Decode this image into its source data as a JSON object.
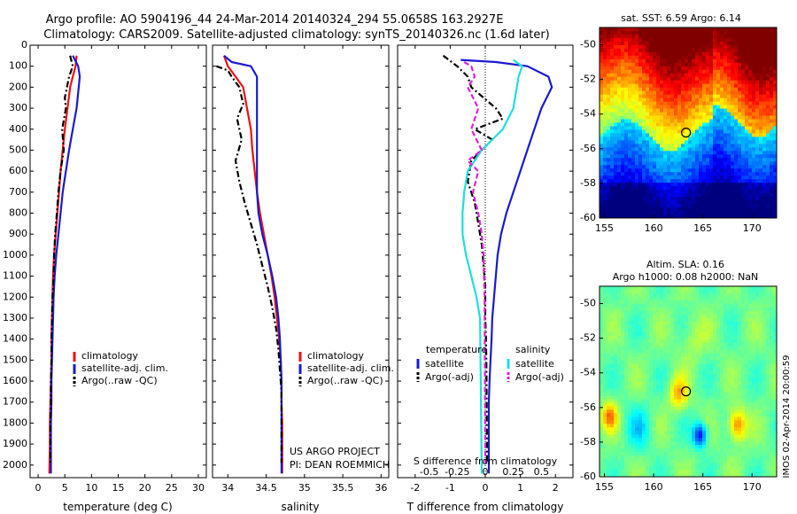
{
  "header": {
    "line1": "Argo profile: AO 5904196_44 24-Mar-2014 20140324_294 55.0658S 163.2927E",
    "line2": "Climatology: CARS2009. Satellite-adjusted climatology: synTS_20140326.nc (1.6d later)"
  },
  "colors": {
    "red": "#ee1111",
    "blue": "#1a1ad0",
    "black": "#000000",
    "cyan": "#22dddd",
    "magenta": "#dd22dd"
  },
  "chart_data": [
    {
      "type": "line",
      "xlabel": "temperature (deg C)",
      "xlim": [
        -1.5,
        31.5
      ],
      "xticks": [
        0,
        5,
        10,
        15,
        20,
        25,
        30
      ],
      "ylim": [
        0,
        2060
      ],
      "yticks": [
        0,
        100,
        200,
        300,
        400,
        500,
        600,
        700,
        800,
        900,
        1000,
        1100,
        1200,
        1300,
        1400,
        1500,
        1600,
        1700,
        1800,
        1900,
        2000
      ],
      "legend": {
        "placement": "lower-right",
        "entries": [
          "climatology",
          "satellite-adj. clim.",
          "Argo(..raw -QC)"
        ]
      },
      "series": [
        {
          "name": "climatology",
          "color": "red",
          "style": "solid",
          "x": [
            7.2,
            7.0,
            6.5,
            6.0,
            5.5,
            5.0,
            4.6,
            4.2,
            3.9,
            3.6,
            3.3,
            3.0,
            2.8,
            2.7,
            2.6,
            2.5,
            2.5,
            2.4,
            2.3,
            2.2,
            2.2,
            2.1
          ],
          "y": [
            50,
            100,
            150,
            200,
            300,
            400,
            500,
            600,
            700,
            800,
            900,
            1000,
            1100,
            1200,
            1300,
            1400,
            1500,
            1600,
            1700,
            1800,
            1900,
            2040
          ]
        },
        {
          "name": "satellite-adj. clim.",
          "color": "blue",
          "style": "solid",
          "x": [
            6.5,
            7.5,
            7.8,
            7.6,
            7.2,
            6.5,
            5.8,
            5.2,
            4.6,
            4.2,
            3.8,
            3.4,
            3.1,
            2.9,
            2.8,
            2.7,
            2.6,
            2.5,
            2.5,
            2.4,
            2.4,
            2.4
          ],
          "y": [
            50,
            100,
            150,
            200,
            300,
            400,
            500,
            600,
            700,
            800,
            900,
            1000,
            1100,
            1200,
            1300,
            1400,
            1500,
            1600,
            1700,
            1800,
            1900,
            2040
          ]
        },
        {
          "name": "Argo(..raw -QC)",
          "color": "black",
          "style": "dashdot",
          "x": [
            6.0,
            6.5,
            5.8,
            5.4,
            5.0,
            5.2,
            4.5,
            4.8,
            4.2,
            3.8,
            3.5,
            3.2,
            3.0,
            2.9,
            2.7,
            2.6,
            2.5,
            2.5,
            2.4,
            2.4,
            2.3,
            2.3
          ],
          "y": [
            50,
            100,
            150,
            200,
            250,
            300,
            400,
            500,
            600,
            700,
            800,
            900,
            1000,
            1100,
            1200,
            1300,
            1400,
            1500,
            1600,
            1700,
            1800,
            1990
          ]
        }
      ]
    },
    {
      "type": "line",
      "xlabel": "salinity",
      "xlim": [
        33.8,
        36.1
      ],
      "xticks": [
        34,
        34.5,
        35,
        35.5,
        36
      ],
      "ylim": [
        0,
        2060
      ],
      "legend": {
        "placement": "lower-right",
        "entries": [
          "climatology",
          "satellite-adj. clim.",
          "Argo(..raw -QC)"
        ]
      },
      "annotations": [
        "US ARGO PROJECT",
        "PI: DEAN ROEMMICH"
      ],
      "series": [
        {
          "name": "climatology",
          "color": "red",
          "style": "solid",
          "x": [
            33.95,
            34.0,
            34.1,
            34.2,
            34.25,
            34.3,
            34.32,
            34.35,
            34.38,
            34.42,
            34.47,
            34.52,
            34.57,
            34.61,
            34.64,
            34.67,
            34.69,
            34.7,
            34.7,
            34.71,
            34.71
          ],
          "y": [
            50,
            100,
            150,
            200,
            300,
            400,
            500,
            600,
            700,
            800,
            900,
            1000,
            1100,
            1200,
            1300,
            1400,
            1500,
            1600,
            1700,
            1800,
            2040
          ]
        },
        {
          "name": "satellite-adj. clim.",
          "color": "blue",
          "style": "solid",
          "x": [
            33.95,
            34.05,
            34.3,
            34.38,
            34.38,
            34.38,
            34.38,
            34.38,
            34.38,
            34.38,
            34.4,
            34.45,
            34.52,
            34.58,
            34.63,
            34.66,
            34.68,
            34.69,
            34.7,
            34.7,
            34.7
          ],
          "y": [
            50,
            80,
            100,
            150,
            200,
            300,
            400,
            500,
            600,
            700,
            800,
            900,
            1000,
            1100,
            1200,
            1300,
            1400,
            1500,
            1600,
            1700,
            2040
          ]
        },
        {
          "name": "Argo(..raw -QC)",
          "color": "black",
          "style": "dashdot",
          "x": [
            33.85,
            34.0,
            34.05,
            34.15,
            34.2,
            34.12,
            34.18,
            34.1,
            34.15,
            34.22,
            34.3,
            34.38,
            34.45,
            34.52,
            34.58,
            34.63,
            34.66,
            34.68,
            34.7,
            34.7,
            34.7
          ],
          "y": [
            100,
            120,
            150,
            200,
            280,
            350,
            450,
            550,
            650,
            750,
            850,
            950,
            1050,
            1150,
            1250,
            1350,
            1450,
            1550,
            1650,
            1800,
            1990
          ]
        }
      ]
    },
    {
      "type": "line",
      "xlabel": "T difference from climatology",
      "xlim": [
        -2.5,
        2.5
      ],
      "xticks": [
        -2,
        -1,
        0,
        1,
        2
      ],
      "top_axis_label": "S difference from climatology",
      "top_ticks": [
        "-0.5",
        "-0.25",
        "0",
        "0.25",
        "0.5"
      ],
      "ylim": [
        0,
        2060
      ],
      "legend": {
        "placement": "lower-center",
        "groups": [
          "temperature",
          "salinity"
        ],
        "entries": [
          "satellite",
          "Argo(-adj)",
          "satellite",
          "Argo(-adj)"
        ]
      },
      "series": [
        {
          "name": "temperature satellite",
          "color": "blue",
          "style": "solid",
          "x": [
            -0.7,
            0.3,
            1.2,
            1.8,
            1.9,
            1.6,
            1.4,
            1.2,
            1.0,
            0.8,
            0.6,
            0.45,
            0.35,
            0.3,
            0.25,
            0.2,
            0.18,
            0.15,
            0.12,
            0.1,
            0.1
          ],
          "y": [
            70,
            80,
            100,
            150,
            200,
            300,
            400,
            500,
            600,
            700,
            800,
            900,
            1000,
            1100,
            1200,
            1300,
            1400,
            1500,
            1600,
            1700,
            2040
          ]
        },
        {
          "name": "temperature Argo(-adj)",
          "color": "black",
          "style": "dashdot",
          "x": [
            -1.2,
            -0.8,
            -0.5,
            -0.4,
            0.3,
            0.5,
            -0.3,
            0.2,
            -0.4,
            -0.5,
            -0.3,
            -0.2,
            -0.1,
            -0.05,
            0.0,
            0.0,
            0.02,
            0.03,
            0.04,
            0.05
          ],
          "y": [
            50,
            100,
            150,
            200,
            300,
            350,
            400,
            450,
            550,
            650,
            750,
            850,
            950,
            1050,
            1150,
            1300,
            1400,
            1500,
            1700,
            1990
          ]
        },
        {
          "name": "salinity satellite",
          "color": "cyan",
          "style": "solid",
          "x": [
            0.8,
            1.05,
            0.95,
            0.8,
            0.5,
            -0.1,
            -0.5,
            -0.6,
            -0.65,
            -0.65,
            -0.55,
            -0.4,
            -0.25,
            -0.15,
            -0.1
          ],
          "y": [
            70,
            100,
            150,
            300,
            400,
            500,
            600,
            700,
            800,
            900,
            1000,
            1100,
            1200,
            1300,
            2040
          ]
        },
        {
          "name": "salinity Argo(-adj)",
          "color": "magenta",
          "style": "dashed",
          "x": [
            -0.6,
            -0.4,
            -0.3,
            -0.5,
            -0.2,
            -0.4,
            -0.1,
            -0.5,
            -0.2,
            -0.35,
            -0.2,
            -0.1,
            -0.05,
            -0.02,
            0.0
          ],
          "y": [
            80,
            100,
            150,
            200,
            300,
            400,
            500,
            550,
            600,
            700,
            800,
            900,
            1000,
            1200,
            1990
          ]
        }
      ]
    },
    {
      "type": "heatmap",
      "title": "sat. SST: 6.59 Argo: 6.14",
      "xlim": [
        154.5,
        172.5
      ],
      "xticks": [
        155,
        160,
        165,
        170
      ],
      "ylim": [
        -60,
        -49
      ],
      "yticks": [
        -50,
        -52,
        -54,
        -56,
        -58,
        -60
      ],
      "marker": {
        "x": 163.29,
        "y": -55.07
      },
      "palette": [
        "#00007f",
        "#0000ff",
        "#007fff",
        "#00ffff",
        "#7fff7f",
        "#ffff00",
        "#ff7f00",
        "#ff0000",
        "#7f0000"
      ]
    },
    {
      "type": "heatmap",
      "title_lines": [
        "Altim. SLA: 0.16",
        "Argo h1000: 0.08 h2000: NaN"
      ],
      "xlim": [
        154.5,
        172.5
      ],
      "xticks": [
        155,
        160,
        165,
        170
      ],
      "ylim": [
        -60,
        -49
      ],
      "yticks": [
        -50,
        -52,
        -54,
        -56,
        -58,
        -60
      ],
      "marker": {
        "x": 163.29,
        "y": -55.07
      },
      "palette": [
        "#00007f",
        "#0000ff",
        "#007fff",
        "#00ffff",
        "#7fff7f",
        "#ffff00",
        "#ff7f00",
        "#ff0000",
        "#7f0000"
      ]
    }
  ],
  "footer_stamp": "IMOS 02-Apr-2014 20:00:59"
}
